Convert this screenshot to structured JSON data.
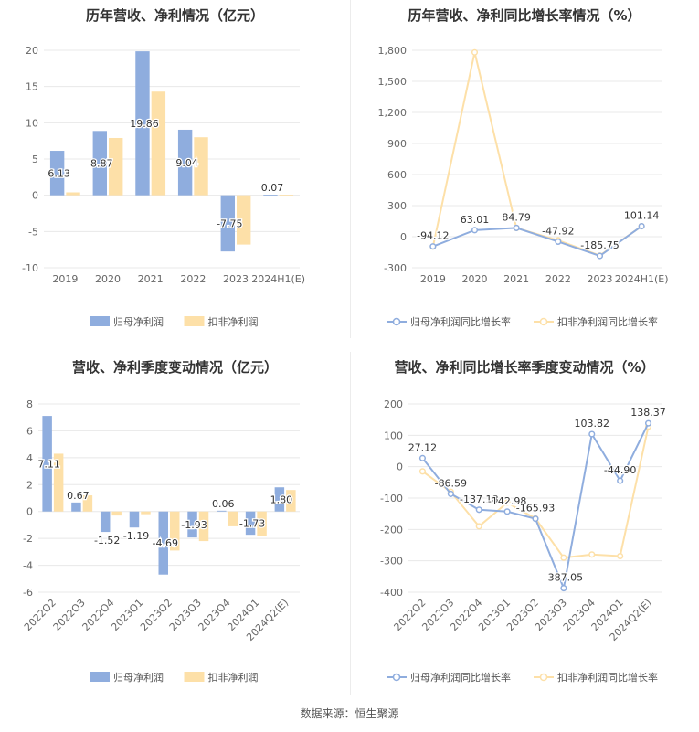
{
  "source_text": "数据来源：恒生聚源",
  "colors": {
    "net_profit": "#8fadde",
    "deducted": "#fde0a8",
    "grid": "#e8e8e8",
    "axis_text": "#666666",
    "title": "#333333"
  },
  "chart_data": [
    {
      "type": "bar",
      "title": "历年营收、净利情况（亿元）",
      "categories": [
        "2019",
        "2020",
        "2021",
        "2022",
        "2023",
        "2024H1(E)"
      ],
      "series": [
        {
          "name": "归母净利润",
          "values": [
            6.13,
            8.87,
            19.86,
            9.04,
            -7.75,
            0.07
          ],
          "show_labels": true
        },
        {
          "name": "扣非净利润",
          "values": [
            0.4,
            7.9,
            14.3,
            8.0,
            -6.8,
            0.07
          ],
          "show_labels": false
        }
      ],
      "ylim": [
        -10,
        20
      ],
      "yticks": [
        -10,
        -5,
        0,
        5,
        10,
        15,
        20
      ],
      "legend": "bottom",
      "grid": true
    },
    {
      "type": "line",
      "title": "历年营收、净利同比增长率情况（%）",
      "categories": [
        "2019",
        "2020",
        "2021",
        "2022",
        "2023",
        "2024H1(E)"
      ],
      "series": [
        {
          "name": "归母净利润同比增长率",
          "values": [
            -94.12,
            63.01,
            84.79,
            -47.92,
            -185.75,
            101.14
          ],
          "show_labels": true
        },
        {
          "name": "扣非净利润同比增长率",
          "values": [
            -96.0,
            1780.0,
            84.0,
            -35.0,
            -182.0,
            101.0
          ],
          "show_labels": false
        }
      ],
      "ylim": [
        -300,
        1800
      ],
      "yticks": [
        -300,
        0,
        300,
        600,
        900,
        1200,
        1500,
        1800
      ],
      "ytick_labels": [
        "-300",
        "0",
        "300",
        "600",
        "900",
        "1,200",
        "1,500",
        "1,800"
      ],
      "legend": "bottom",
      "grid": true
    },
    {
      "type": "bar",
      "title": "营收、净利季度变动情况（亿元）",
      "categories": [
        "2022Q2",
        "2022Q3",
        "2022Q4",
        "2023Q1",
        "2023Q2",
        "2023Q3",
        "2023Q4",
        "2024Q1",
        "2024Q2(E)"
      ],
      "series": [
        {
          "name": "归母净利润",
          "values": [
            7.11,
            0.67,
            -1.52,
            -1.19,
            -4.69,
            -1.93,
            0.06,
            -1.73,
            1.8
          ],
          "show_labels": true
        },
        {
          "name": "扣非净利润",
          "values": [
            4.3,
            1.2,
            -0.3,
            -0.2,
            -2.9,
            -2.2,
            -1.1,
            -1.8,
            1.6
          ],
          "show_labels": false
        }
      ],
      "ylim": [
        -6,
        8
      ],
      "yticks": [
        -6,
        -4,
        -2,
        0,
        2,
        4,
        6,
        8
      ],
      "legend": "bottom",
      "grid": true,
      "rotated_xlabels": true
    },
    {
      "type": "line",
      "title": "营收、净利同比增长率季度变动情况（%）",
      "categories": [
        "2022Q2",
        "2022Q3",
        "2022Q4",
        "2023Q1",
        "2023Q2",
        "2023Q3",
        "2023Q4",
        "2024Q1",
        "2024Q2(E)"
      ],
      "series": [
        {
          "name": "归母净利润同比增长率",
          "values": [
            27.12,
            -86.59,
            -137.18,
            -142.98,
            -165.93,
            -387.05,
            103.82,
            -44.9,
            138.37
          ],
          "show_labels": true
        },
        {
          "name": "扣非净利润同比增长率",
          "values": [
            -15.0,
            -80.0,
            -190.0,
            -115.0,
            -165.0,
            -290.0,
            -280.0,
            -285.0,
            128.0
          ],
          "show_labels": false
        }
      ],
      "ylim": [
        -400,
        200
      ],
      "yticks": [
        -400,
        -300,
        -200,
        -100,
        0,
        100,
        200
      ],
      "legend": "bottom",
      "grid": true,
      "rotated_xlabels": true
    }
  ]
}
